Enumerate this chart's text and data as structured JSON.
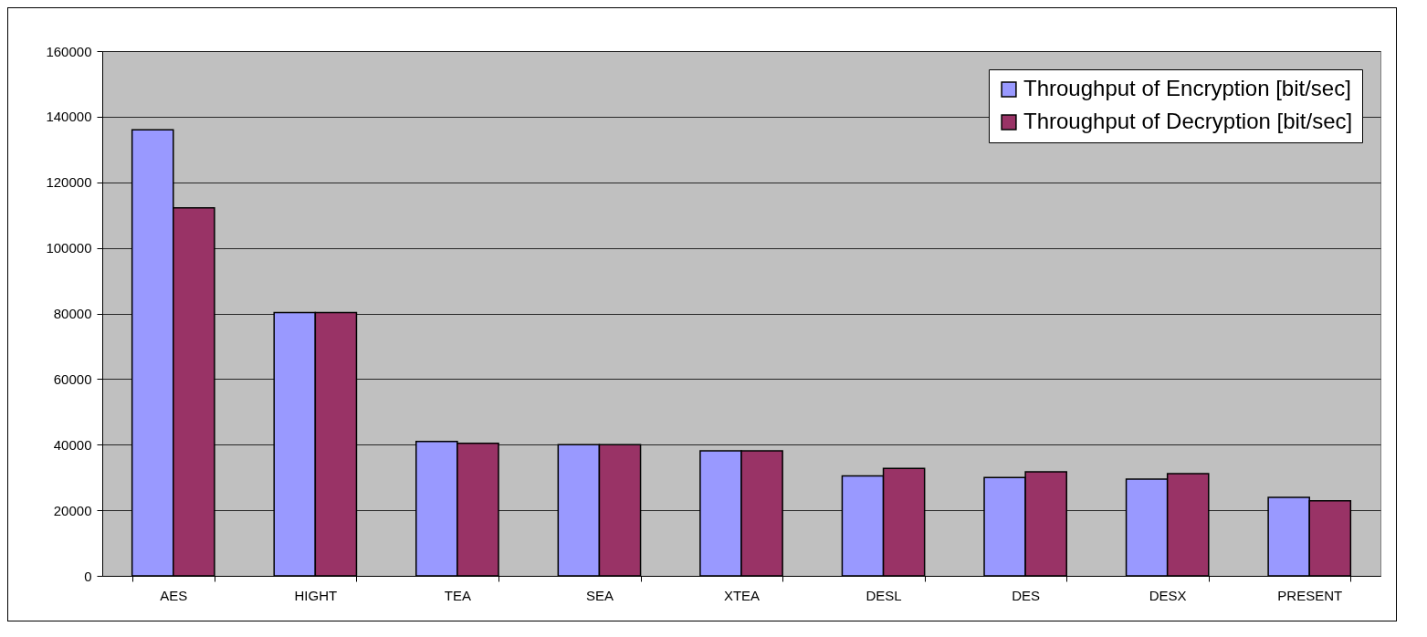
{
  "chart_data": {
    "type": "bar",
    "categories": [
      "AES",
      "HIGHT",
      "TEA",
      "SEA",
      "XTEA",
      "DESL",
      "DES",
      "DESX",
      "PRESENT"
    ],
    "series": [
      {
        "name": "Throughput of Encryption [bit/sec]",
        "color": "#9999ff",
        "values": [
          136000,
          80300,
          41000,
          40000,
          38100,
          30500,
          30000,
          29500,
          23900
        ]
      },
      {
        "name": "Throughput of Decryption [bit/sec]",
        "color": "#993366",
        "values": [
          112200,
          80300,
          40400,
          40000,
          38100,
          32800,
          31700,
          31200,
          22900
        ]
      }
    ],
    "ylim": [
      0,
      160000
    ],
    "yticks": [
      0,
      20000,
      40000,
      60000,
      80000,
      100000,
      120000,
      140000,
      160000
    ],
    "grid": "y",
    "legend": "top right"
  }
}
